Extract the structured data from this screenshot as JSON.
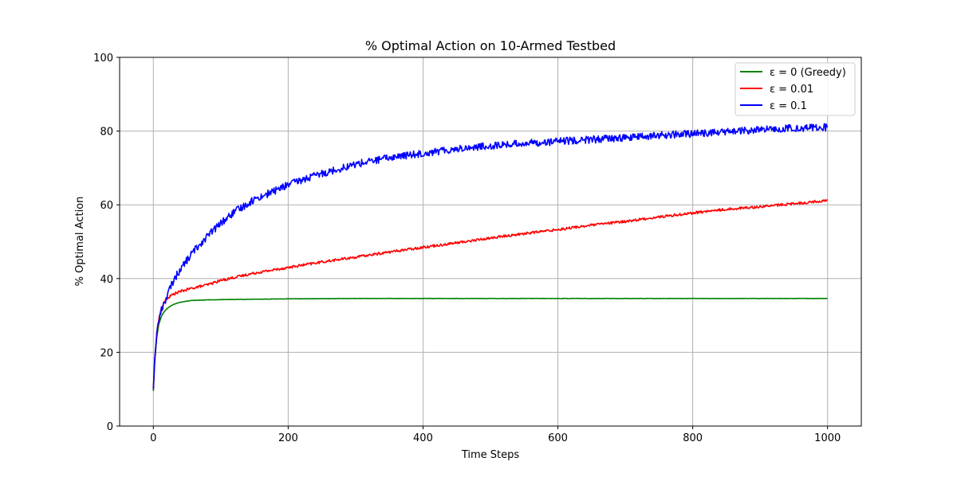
{
  "chart_data": {
    "type": "line",
    "title": "% Optimal Action on 10-Armed Testbed",
    "xlabel": "Time Steps",
    "ylabel": "% Optimal Action",
    "xlim": [
      -50,
      1050
    ],
    "ylim": [
      0,
      100
    ],
    "xticks": [
      0,
      200,
      400,
      600,
      800,
      1000
    ],
    "yticks": [
      0,
      20,
      40,
      60,
      80,
      100
    ],
    "grid": true,
    "legend": "top-right",
    "series": [
      {
        "name": "ε = 0 (Greedy)",
        "color": "#008000",
        "x": [
          0,
          2,
          5,
          8,
          12,
          16,
          20,
          25,
          30,
          40,
          50,
          60,
          80,
          100,
          150,
          200,
          300,
          400,
          500,
          600,
          700,
          800,
          900,
          1000
        ],
        "y": [
          9.5,
          17,
          24,
          27.5,
          29.8,
          31,
          31.8,
          32.5,
          33,
          33.6,
          33.9,
          34.1,
          34.2,
          34.3,
          34.4,
          34.5,
          34.6,
          34.6,
          34.6,
          34.6,
          34.6,
          34.6,
          34.6,
          34.6
        ]
      },
      {
        "name": "ε = 0.01",
        "color": "#ff0000",
        "x": [
          0,
          2,
          5,
          8,
          12,
          16,
          20,
          25,
          30,
          40,
          50,
          60,
          80,
          100,
          150,
          200,
          250,
          300,
          350,
          400,
          450,
          500,
          550,
          600,
          650,
          700,
          750,
          800,
          850,
          900,
          950,
          1000
        ],
        "y": [
          10,
          18,
          25,
          29,
          32,
          33.5,
          34.5,
          35.2,
          35.8,
          36.5,
          37,
          37.5,
          38.3,
          39.5,
          41.5,
          43,
          44.5,
          45.8,
          47.2,
          48.5,
          49.7,
          51,
          52.2,
          53.3,
          54.5,
          55.5,
          56.7,
          57.8,
          58.8,
          59.5,
          60.3,
          61.2
        ]
      },
      {
        "name": "ε = 0.1",
        "color": "#0000ff",
        "x": [
          0,
          2,
          5,
          8,
          12,
          16,
          20,
          25,
          30,
          40,
          50,
          60,
          70,
          80,
          100,
          120,
          150,
          180,
          200,
          250,
          300,
          350,
          400,
          450,
          500,
          550,
          600,
          650,
          700,
          750,
          800,
          850,
          900,
          950,
          1000
        ],
        "y": [
          10,
          18,
          25,
          28.5,
          31.5,
          33.5,
          35,
          37.5,
          39.5,
          42.5,
          45,
          47.5,
          49.5,
          51.5,
          55,
          58,
          61.5,
          63.8,
          65.5,
          68.5,
          71,
          72.8,
          74,
          75.2,
          76,
          76.7,
          77.2,
          77.7,
          78.2,
          78.8,
          79.3,
          79.8,
          80.3,
          80.8,
          81
        ]
      }
    ]
  }
}
